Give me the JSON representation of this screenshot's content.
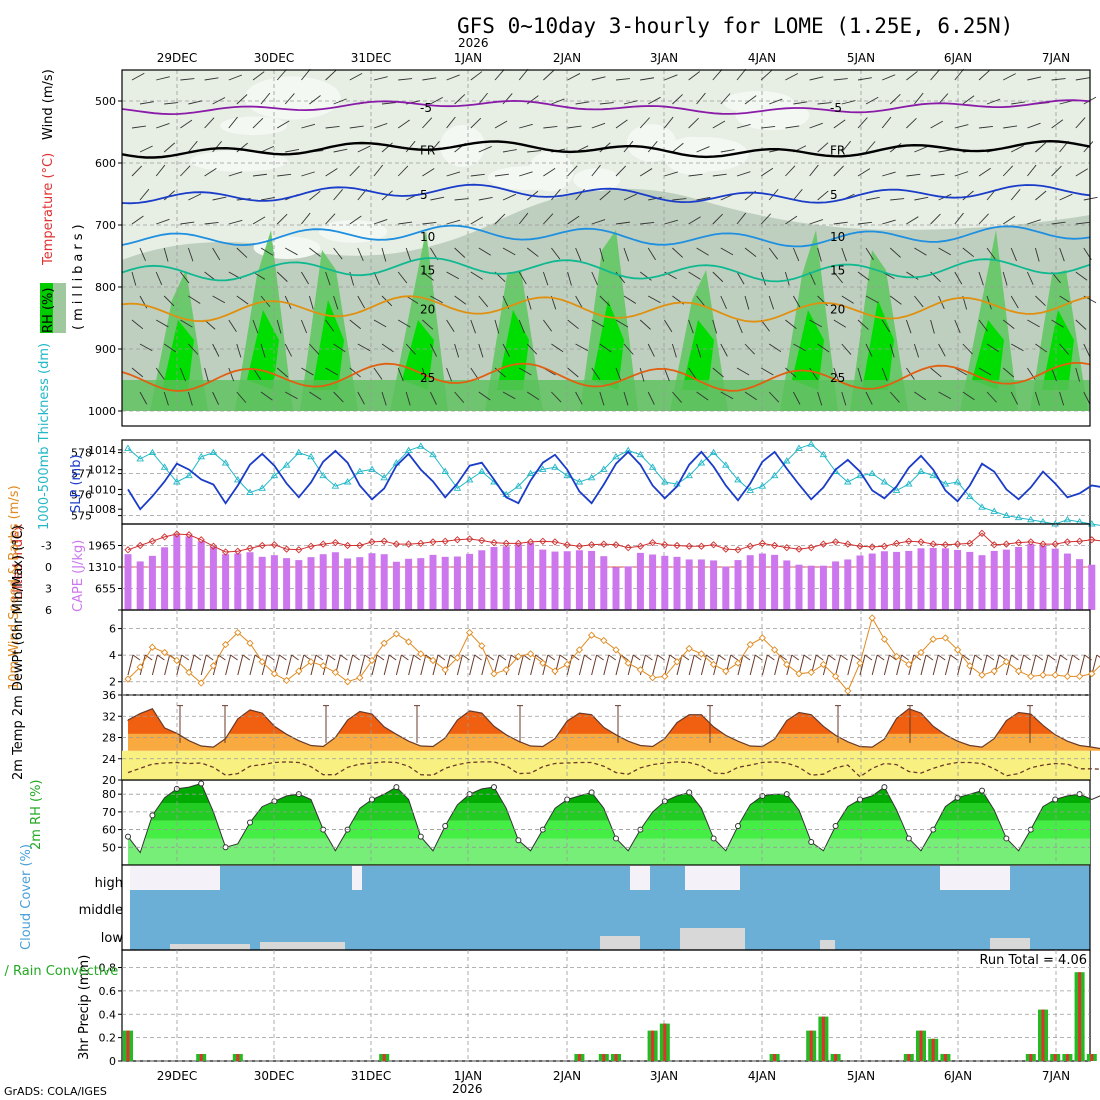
{
  "title": "GFS 0~10day 3-hourly for LOME (1.25E, 6.25N)",
  "year_label": "2026",
  "credit": "GrADS: COLA/IGES",
  "run_total_label": "Run Total = 4.06",
  "colors": {
    "rh_dark": "#00dd00",
    "rh_mid": "#88c888",
    "rh_light": "#c8d8c8",
    "cape": "#cc77ee",
    "lifted": "#d03030",
    "thickness": "#22b8c8",
    "slp": "#1a3cc8",
    "wind": "#e08a20",
    "temp_hi": "#f06010",
    "temp_lo": "#f8aa40",
    "dew_band": "#f8f080",
    "rh2m_dark": "#00bb00",
    "rh2m_light": "#44ee44",
    "cloud": "#6baed6",
    "cloud_clear": "#d8d8d8",
    "precip_total": "#22bb22",
    "precip_conv": "#e03030"
  },
  "chart_data": [
    {
      "type": "heatmap",
      "name": "upper-air",
      "ylabel_parts": [
        "RH (%)",
        "Temperature (°C)",
        "Wind (m/s)"
      ],
      "ylabel_units": "(millibars)",
      "yticks": [
        "500",
        "600",
        "700",
        "800",
        "900",
        "1000"
      ],
      "ylim": [
        450,
        1000
      ],
      "x_dates": [
        "29DEC",
        "30DEC",
        "31DEC",
        "1JAN",
        "2JAN",
        "3JAN",
        "4JAN",
        "5JAN",
        "6JAN",
        "7JAN"
      ],
      "isotherms": [
        {
          "label": "-5",
          "level_mb": 510,
          "color": "#8a1aa8"
        },
        {
          "label": "FR",
          "level_mb": 578,
          "color": "#000000"
        },
        {
          "label": "5",
          "level_mb": 650,
          "color": "#1a3cc8"
        },
        {
          "label": "10",
          "level_mb": 718,
          "color": "#1f8fe0"
        },
        {
          "label": "15",
          "level_mb": 772,
          "color": "#10b890"
        },
        {
          "label": "20",
          "level_mb": 835,
          "color": "#e09010"
        },
        {
          "label": "25",
          "level_mb": 945,
          "color": "#e06010"
        }
      ]
    },
    {
      "type": "line",
      "name": "thickness-slp",
      "ylabel_left": "1000-500mb Thickness (dm)",
      "ylabel_right": "SLP (mb)",
      "left_ticks": [
        "578",
        "577",
        "576",
        "575"
      ],
      "right_ticks": [
        "1014",
        "1012",
        "1010",
        "1008"
      ],
      "thickness_dm": [
        578.2,
        577.7,
        578.0,
        577.3,
        576.6,
        576.9,
        577.8,
        578.0,
        577.5,
        576.7,
        576.1,
        576.3,
        576.9,
        577.4,
        578.0,
        577.8,
        576.9,
        576.4,
        576.6,
        577.1,
        577.2,
        576.8,
        577.5,
        578.1,
        578.3,
        577.9,
        577.1,
        576.3,
        576.7,
        577.1,
        576.6,
        576.0,
        576.4,
        577.0,
        577.2,
        577.3,
        576.9,
        576.6,
        576.8,
        577.2,
        577.8,
        578.1,
        577.9,
        577.3,
        576.6,
        576.5,
        576.9,
        577.5,
        578.0,
        577.4,
        576.7,
        576.2,
        576.4,
        576.9,
        577.6,
        578.2,
        578.4,
        577.9,
        577.1,
        576.6,
        576.9,
        577.0,
        576.6,
        576.2,
        576.5,
        577.1,
        576.9,
        576.5,
        576.6,
        575.9,
        575.4,
        575.2,
        575.0,
        574.9,
        574.8,
        574.7,
        574.6,
        574.8,
        574.7,
        574.6,
        574.5
      ],
      "slp_mb": [
        1010.0,
        1008.0,
        1009.3,
        1010.8,
        1012.6,
        1012.0,
        1011.0,
        1010.5,
        1008.6,
        1010.4,
        1012.5,
        1013.6,
        1012.4,
        1010.6,
        1009.2,
        1010.7,
        1012.8,
        1013.9,
        1012.7,
        1010.4,
        1009.0,
        1010.1,
        1012.4,
        1013.6,
        1012.0,
        1010.8,
        1009.2,
        1010.6,
        1012.4,
        1012.7,
        1011.0,
        1009.2,
        1008.6,
        1010.9,
        1012.7,
        1013.5,
        1012.0,
        1009.8,
        1008.6,
        1010.5,
        1012.6,
        1013.8,
        1012.5,
        1010.4,
        1009.1,
        1010.3,
        1012.5,
        1013.8,
        1012.3,
        1010.4,
        1008.9,
        1010.6,
        1012.8,
        1013.8,
        1012.1,
        1010.5,
        1009.0,
        1010.2,
        1012.0,
        1013.0,
        1011.8,
        1009.9,
        1009.1,
        1010.3,
        1012.2,
        1013.4,
        1012.0,
        1009.9,
        1008.8,
        1010.4,
        1012.6,
        1011.8,
        1010.0,
        1009.0,
        1010.2,
        1011.8,
        1010.6,
        1009.2,
        1009.6,
        1010.4,
        1010.2
      ]
    },
    {
      "type": "bar",
      "name": "lifted-cape",
      "ylabel_left": "Lifted Index",
      "ylabel_right": "CAPE (J/kg)",
      "li_ticks": [
        "-3",
        "0",
        "3",
        "6"
      ],
      "cape_ticks": [
        "1965",
        "1310",
        "655"
      ],
      "cape_jkg": [
        1700,
        1480,
        1650,
        1910,
        2280,
        2240,
        2090,
        1920,
        1700,
        1720,
        1760,
        1620,
        1670,
        1580,
        1520,
        1610,
        1700,
        1760,
        1570,
        1610,
        1730,
        1700,
        1470,
        1560,
        1580,
        1680,
        1620,
        1630,
        1710,
        1820,
        1920,
        1940,
        2000,
        2040,
        1840,
        1780,
        1790,
        1820,
        1800,
        1640,
        1300,
        1330,
        1740,
        1690,
        1650,
        1620,
        1540,
        1540,
        1510,
        1320,
        1520,
        1670,
        1720,
        1680,
        1510,
        1380,
        1350,
        1350,
        1480,
        1540,
        1660,
        1720,
        1790,
        1770,
        1800,
        1880,
        1890,
        1880,
        1830,
        1770,
        1670,
        1800,
        1840,
        1920,
        2010,
        1960,
        1870,
        1720,
        1550,
        1380,
        1330
      ],
      "lifted_index": [
        -2.4,
        -3.0,
        -3.6,
        -4.2,
        -4.6,
        -4.5,
        -3.8,
        -2.9,
        -2.1,
        -2.2,
        -2.6,
        -3.0,
        -3.1,
        -2.5,
        -2.4,
        -2.9,
        -3.2,
        -3.4,
        -3.0,
        -3.0,
        -3.5,
        -3.6,
        -3.2,
        -3.2,
        -3.3,
        -3.5,
        -3.6,
        -3.8,
        -3.9,
        -3.7,
        -3.4,
        -3.3,
        -3.3,
        -3.5,
        -3.6,
        -3.5,
        -3.1,
        -2.9,
        -3.1,
        -3.2,
        -3.1,
        -2.7,
        -2.9,
        -3.4,
        -3.1,
        -3.0,
        -2.9,
        -2.9,
        -3.1,
        -2.5,
        -2.4,
        -2.9,
        -3.3,
        -3.0,
        -2.7,
        -2.5,
        -2.7,
        -3.2,
        -3.5,
        -3.2,
        -2.9,
        -2.8,
        -2.9,
        -3.3,
        -3.6,
        -3.5,
        -3.2,
        -3.1,
        -3.2,
        -3.3,
        -4.7,
        -3.1,
        -3.2,
        -3.4,
        -3.5,
        -3.2,
        -3.2,
        -3.5,
        -3.6,
        -3.8,
        -3.6
      ]
    },
    {
      "type": "line",
      "name": "wind10m",
      "ylabel": "10m Wind Speed & Barbs (m/s)",
      "yticks": [
        "6",
        "4",
        "2"
      ],
      "speed_ms": [
        2.2,
        3.1,
        4.6,
        4.2,
        3.6,
        2.7,
        1.9,
        3.2,
        4.8,
        5.7,
        4.9,
        3.5,
        2.6,
        2.1,
        2.8,
        3.5,
        3.2,
        2.7,
        2.0,
        2.3,
        3.6,
        4.9,
        5.6,
        5.0,
        4.1,
        3.6,
        2.9,
        3.8,
        5.7,
        4.7,
        2.6,
        2.9,
        3.9,
        4.1,
        3.4,
        2.8,
        3.3,
        4.4,
        5.5,
        5.1,
        4.4,
        3.4,
        2.9,
        2.3,
        2.4,
        3.5,
        4.5,
        4.1,
        3.3,
        2.8,
        3.4,
        4.8,
        5.3,
        4.4,
        3.3,
        2.6,
        2.7,
        3.3,
        2.4,
        1.3,
        3.4,
        6.8,
        5.2,
        3.9,
        3.3,
        4.2,
        5.2,
        5.3,
        4.4,
        3.2,
        2.5,
        2.8,
        3.5,
        2.8,
        2.4,
        2.5,
        2.5,
        2.4,
        2.4,
        2.6,
        3.5
      ]
    },
    {
      "type": "area",
      "name": "temp2m",
      "ylabel": "2m Temp 2m DewPt (6hr Min/Max) (°C)",
      "yticks": [
        "36",
        "32",
        "28",
        "24",
        "20"
      ],
      "temp_c": [
        31.3,
        32.5,
        33.4,
        29.8,
        28.8,
        27.4,
        26.4,
        26.2,
        27.8,
        31.5,
        33.2,
        32.6,
        30.1,
        28.6,
        27.4,
        26.5,
        26.3,
        28.0,
        31.3,
        32.9,
        32.4,
        30.0,
        28.6,
        27.3,
        26.4,
        26.3,
        27.9,
        31.3,
        33.0,
        32.6,
        30.1,
        28.5,
        27.3,
        26.4,
        26.3,
        27.8,
        31.1,
        32.6,
        32.3,
        29.9,
        28.5,
        27.3,
        26.5,
        26.3,
        27.8,
        30.8,
        32.3,
        32.3,
        30.0,
        28.4,
        27.3,
        26.4,
        26.3,
        27.7,
        31.2,
        32.7,
        32.3,
        30.1,
        28.4,
        27.2,
        26.3,
        26.2,
        27.7,
        31.6,
        33.4,
        32.6,
        30.1,
        28.5,
        27.3,
        26.5,
        26.2,
        27.8,
        31.2,
        32.7,
        32.4,
        30.3,
        28.5,
        27.3,
        26.5,
        26.2,
        25.8
      ],
      "dewpt_c": [
        21.4,
        22.2,
        23.0,
        23.2,
        23.3,
        23.1,
        23.2,
        22.4,
        20.9,
        21.2,
        22.6,
        22.9,
        23.3,
        23.4,
        23.3,
        22.5,
        21.0,
        21.0,
        22.4,
        23.0,
        23.2,
        23.4,
        23.3,
        22.6,
        21.0,
        20.9,
        22.2,
        22.9,
        23.3,
        23.4,
        23.4,
        22.7,
        21.2,
        21.3,
        22.5,
        23.1,
        23.2,
        23.3,
        23.3,
        22.6,
        21.4,
        21.1,
        22.3,
        22.9,
        23.2,
        23.4,
        23.3,
        22.7,
        21.3,
        21.2,
        22.4,
        22.8,
        23.3,
        23.4,
        23.2,
        22.4,
        20.9,
        21.1,
        22.3,
        22.8,
        20.6,
        22.2,
        23.1,
        22.9,
        21.6,
        21.3,
        22.2,
        22.9,
        23.3,
        23.3,
        23.1,
        22.1,
        20.8,
        21.2,
        22.3,
        22.8,
        23.1,
        23.0,
        22.1,
        22.1,
        22.0
      ]
    },
    {
      "type": "area",
      "name": "rh2m",
      "ylabel": "2m RH (%)",
      "yticks": [
        "80",
        "70",
        "60",
        "50"
      ],
      "rh_pct": [
        56,
        47,
        68,
        78,
        83,
        84,
        86,
        70,
        50,
        52,
        64,
        73,
        76,
        79,
        80,
        77,
        60,
        48,
        60,
        72,
        77,
        80,
        84,
        77,
        56,
        48,
        62,
        74,
        80,
        83,
        84,
        72,
        54,
        48,
        60,
        72,
        77,
        79,
        81,
        72,
        55,
        48,
        60,
        70,
        76,
        79,
        81,
        72,
        55,
        48,
        62,
        74,
        79,
        80,
        80,
        71,
        53,
        48,
        62,
        73,
        77,
        79,
        84,
        71,
        55,
        48,
        60,
        73,
        78,
        80,
        82,
        71,
        55,
        48,
        60,
        73,
        77,
        79,
        80,
        77,
        80
      ]
    },
    {
      "type": "bar",
      "name": "cloud-cover",
      "ylabel": "Cloud Cover (%)",
      "levels": [
        "high",
        "middle",
        "low"
      ]
    },
    {
      "type": "bar",
      "name": "precip",
      "ylabel_left": "Total / Rain Convective",
      "ylabel": "3hr Precip (mm)",
      "yticks": [
        "0.8",
        "0.6",
        "0.4",
        "0.2",
        "0"
      ],
      "ylim": [
        0,
        0.95
      ],
      "precip_mm": [
        0.26,
        0,
        0,
        0,
        0,
        0,
        0.06,
        0,
        0,
        0.06,
        0,
        0,
        0,
        0,
        0,
        0,
        0,
        0,
        0,
        0,
        0,
        0.06,
        0,
        0,
        0,
        0,
        0,
        0,
        0,
        0,
        0,
        0,
        0,
        0,
        0,
        0,
        0,
        0.06,
        0,
        0.06,
        0.06,
        0,
        0,
        0.26,
        0.32,
        0,
        0,
        0,
        0,
        0,
        0,
        0,
        0,
        0.06,
        0,
        0,
        0.26,
        0.38,
        0.06,
        0,
        0,
        0,
        0,
        0,
        0.06,
        0.26,
        0.19,
        0.06,
        0,
        0,
        0,
        0,
        0,
        0,
        0.06,
        0.44,
        0.06,
        0.06,
        0.06,
        0,
        0
      ],
      "precip_mm_late": [
        0.76,
        0.06
      ],
      "late_positions": [
        78,
        79
      ]
    }
  ]
}
